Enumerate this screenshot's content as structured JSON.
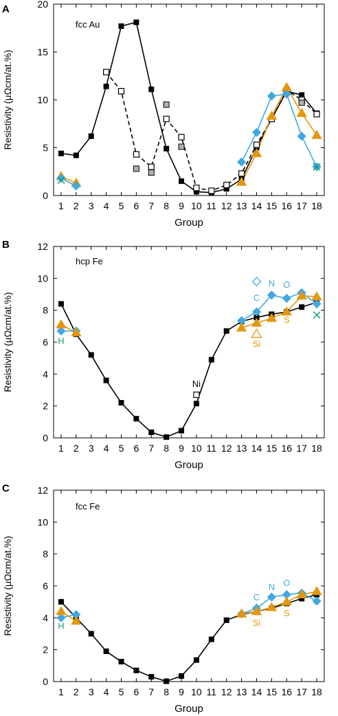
{
  "figure": {
    "colors": {
      "black": "#000000",
      "blue": "#3fa9e0",
      "orange": "#e3960e",
      "green": "#179b7d",
      "gray": "#b0b0b0"
    }
  },
  "chart_data": [
    {
      "type": "line",
      "panel_label": "A",
      "inner_label": "fcc Au",
      "xlabel": "Group",
      "ylabel": "Resistivity (μΩcm/at.%)",
      "xlim": [
        0.5,
        18.5
      ],
      "ylim": [
        0,
        20
      ],
      "xticks": [
        "1",
        "2",
        "3",
        "4",
        "5",
        "6",
        "7",
        "8",
        "9",
        "10",
        "11",
        "12",
        "13",
        "14",
        "15",
        "16",
        "17",
        "18"
      ],
      "yticks": [
        0,
        5,
        10,
        15,
        20
      ],
      "series": [
        {
          "marker": "filled-square",
          "color": "#000000",
          "line": "solid",
          "x": [
            1,
            2,
            3,
            4,
            5,
            6,
            7,
            8,
            9,
            10,
            11,
            12,
            13,
            14,
            15,
            16,
            17,
            18
          ],
          "y": [
            4.4,
            4.2,
            6.2,
            11.4,
            17.7,
            18.1,
            11.1,
            4.9,
            1.5,
            0.4,
            0.3,
            0.7,
            1.7,
            5.0,
            8.0,
            10.9,
            10.5,
            8.6
          ]
        },
        {
          "marker": "open-square",
          "color": "#000000",
          "line": "dashed",
          "x": [
            4,
            5,
            6,
            7,
            8,
            9,
            10,
            11,
            12,
            13,
            14,
            15,
            16,
            17,
            18
          ],
          "y": [
            12.9,
            10.9,
            4.3,
            3.0,
            8.0,
            6.1,
            0.8,
            0.5,
            1.1,
            2.3,
            5.3,
            8.0,
            11.0,
            10.0,
            8.5
          ]
        },
        {
          "marker": "gray-square",
          "color": "#b0b0b0",
          "line": "none",
          "x": [
            6,
            7,
            8,
            9,
            17
          ],
          "y": [
            2.8,
            2.4,
            9.5,
            5.1,
            9.7
          ]
        },
        {
          "marker": "diamond",
          "color": "#3fa9e0",
          "line": "solid",
          "x": [
            13,
            14,
            15,
            16,
            17,
            18
          ],
          "y": [
            3.5,
            6.6,
            10.4,
            10.6,
            6.2,
            3.0
          ]
        },
        {
          "marker": "triangle",
          "color": "#e3960e",
          "line": "solid",
          "x": [
            1,
            2
          ],
          "y": [
            2.0,
            1.3
          ]
        },
        {
          "marker": "triangle",
          "color": "#e3960e",
          "line": "solid",
          "x": [
            13,
            14,
            15,
            16,
            17,
            18
          ],
          "y": [
            1.4,
            4.4,
            8.3,
            11.3,
            8.6,
            6.3
          ]
        },
        {
          "marker": "diamond",
          "color": "#3fa9e0",
          "line": "solid",
          "x": [
            1,
            2
          ],
          "y": [
            1.8,
            1.0
          ]
        },
        {
          "marker": "cross",
          "color": "#179b7d",
          "line": "none",
          "x": [
            1,
            18
          ],
          "y": [
            1.6,
            3.0
          ]
        }
      ],
      "annotations": []
    },
    {
      "type": "line",
      "panel_label": "B",
      "inner_label": "hcp Fe",
      "xlabel": "Group",
      "ylabel": "Resistivity (μΩcm/at.%)",
      "xlim": [
        0.5,
        18.5
      ],
      "ylim": [
        0,
        12
      ],
      "xticks": [
        "1",
        "2",
        "3",
        "4",
        "5",
        "6",
        "7",
        "8",
        "9",
        "10",
        "11",
        "12",
        "13",
        "14",
        "15",
        "16",
        "17",
        "18"
      ],
      "yticks": [
        0,
        2,
        4,
        6,
        8,
        10,
        12
      ],
      "series": [
        {
          "marker": "filled-square",
          "color": "#000000",
          "line": "solid",
          "x": [
            1,
            2,
            3,
            4,
            5,
            6,
            7,
            8,
            9,
            10,
            11,
            12,
            13,
            14,
            15,
            16,
            17,
            18
          ],
          "y": [
            8.4,
            6.5,
            5.2,
            3.6,
            2.2,
            1.2,
            0.35,
            0.05,
            0.45,
            2.15,
            4.9,
            6.7,
            7.3,
            7.55,
            7.75,
            7.9,
            8.2,
            8.5
          ]
        },
        {
          "marker": "open-square",
          "color": "#000000",
          "line": "none",
          "x": [
            10
          ],
          "y": [
            2.7
          ]
        },
        {
          "marker": "diamond",
          "color": "#3fa9e0",
          "line": "solid",
          "x": [
            13,
            14,
            15,
            16,
            17,
            18
          ],
          "y": [
            7.35,
            7.9,
            8.95,
            8.75,
            9.1,
            8.4
          ]
        },
        {
          "marker": "triangle",
          "color": "#e3960e",
          "line": "solid",
          "x": [
            13,
            14,
            15,
            16,
            17,
            18
          ],
          "y": [
            6.9,
            7.2,
            7.5,
            7.9,
            8.9,
            8.85
          ]
        },
        {
          "marker": "diamond",
          "color": "#3fa9e0",
          "line": "solid",
          "x": [
            1,
            2
          ],
          "y": [
            6.7,
            6.7
          ]
        },
        {
          "marker": "triangle",
          "color": "#e3960e",
          "line": "solid",
          "x": [
            1,
            2
          ],
          "y": [
            7.1,
            6.6
          ]
        },
        {
          "marker": "open-diamond",
          "color": "#3fa9e0",
          "line": "none",
          "x": [
            14
          ],
          "y": [
            9.8
          ]
        },
        {
          "marker": "open-triangle",
          "color": "#e3960e",
          "line": "none",
          "x": [
            14
          ],
          "y": [
            6.5
          ]
        },
        {
          "marker": "cross",
          "color": "#179b7d",
          "line": "none",
          "x": [
            18
          ],
          "y": [
            7.7
          ]
        }
      ],
      "annotations": [
        {
          "text": "Ni",
          "x": 10,
          "y": 3.2,
          "color": "#000000"
        },
        {
          "text": "C",
          "x": 14,
          "y": 8.6,
          "color": "#3fa9e0"
        },
        {
          "text": "N",
          "x": 15,
          "y": 9.5,
          "color": "#3fa9e0"
        },
        {
          "text": "O",
          "x": 16,
          "y": 9.4,
          "color": "#3fa9e0"
        },
        {
          "text": "S",
          "x": 16,
          "y": 7.2,
          "color": "#e3960e"
        },
        {
          "text": "Si",
          "x": 14,
          "y": 5.7,
          "color": "#e3960e"
        },
        {
          "text": "H",
          "x": 1,
          "y": 5.9,
          "color": "#179b7d"
        }
      ]
    },
    {
      "type": "line",
      "panel_label": "C",
      "inner_label": "fcc Fe",
      "xlabel": "Group",
      "ylabel": "Resistivity (μΩcm/at.%)",
      "xlim": [
        0.5,
        18.5
      ],
      "ylim": [
        0,
        12
      ],
      "xticks": [
        "1",
        "2",
        "3",
        "4",
        "5",
        "6",
        "7",
        "8",
        "9",
        "10",
        "11",
        "12",
        "13",
        "14",
        "15",
        "16",
        "17",
        "18"
      ],
      "yticks": [
        0,
        2,
        4,
        6,
        8,
        10,
        12
      ],
      "series": [
        {
          "marker": "filled-square",
          "color": "#000000",
          "line": "solid",
          "x": [
            1,
            2,
            3,
            4,
            5,
            6,
            7,
            8,
            9,
            10,
            11,
            12,
            13,
            14,
            15,
            16,
            17,
            18
          ],
          "y": [
            5.0,
            4.0,
            3.0,
            1.9,
            1.25,
            0.7,
            0.3,
            0.02,
            0.35,
            1.35,
            2.65,
            3.85,
            4.2,
            4.4,
            4.6,
            4.9,
            5.2,
            5.45
          ]
        },
        {
          "marker": "diamond",
          "color": "#3fa9e0",
          "line": "solid",
          "x": [
            13,
            14,
            15,
            16,
            17,
            18
          ],
          "y": [
            4.25,
            4.6,
            5.3,
            5.45,
            5.55,
            5.05
          ]
        },
        {
          "marker": "triangle",
          "color": "#e3960e",
          "line": "solid",
          "x": [
            13,
            14,
            15,
            16,
            17,
            18
          ],
          "y": [
            4.25,
            4.4,
            4.65,
            5.0,
            5.45,
            5.65
          ]
        },
        {
          "marker": "diamond",
          "color": "#3fa9e0",
          "line": "solid",
          "x": [
            1,
            2
          ],
          "y": [
            4.0,
            4.2
          ]
        },
        {
          "marker": "triangle",
          "color": "#e3960e",
          "line": "solid",
          "x": [
            1,
            2
          ],
          "y": [
            4.4,
            3.8
          ]
        }
      ],
      "annotations": [
        {
          "text": "C",
          "x": 14,
          "y": 5.1,
          "color": "#3fa9e0"
        },
        {
          "text": "N",
          "x": 15,
          "y": 5.75,
          "color": "#3fa9e0"
        },
        {
          "text": "O",
          "x": 16,
          "y": 6.0,
          "color": "#3fa9e0"
        },
        {
          "text": "Si",
          "x": 14,
          "y": 3.5,
          "color": "#e3960e"
        },
        {
          "text": "S",
          "x": 16,
          "y": 4.1,
          "color": "#e3960e"
        },
        {
          "text": "H",
          "x": 1,
          "y": 3.3,
          "color": "#179b7d"
        }
      ]
    }
  ]
}
